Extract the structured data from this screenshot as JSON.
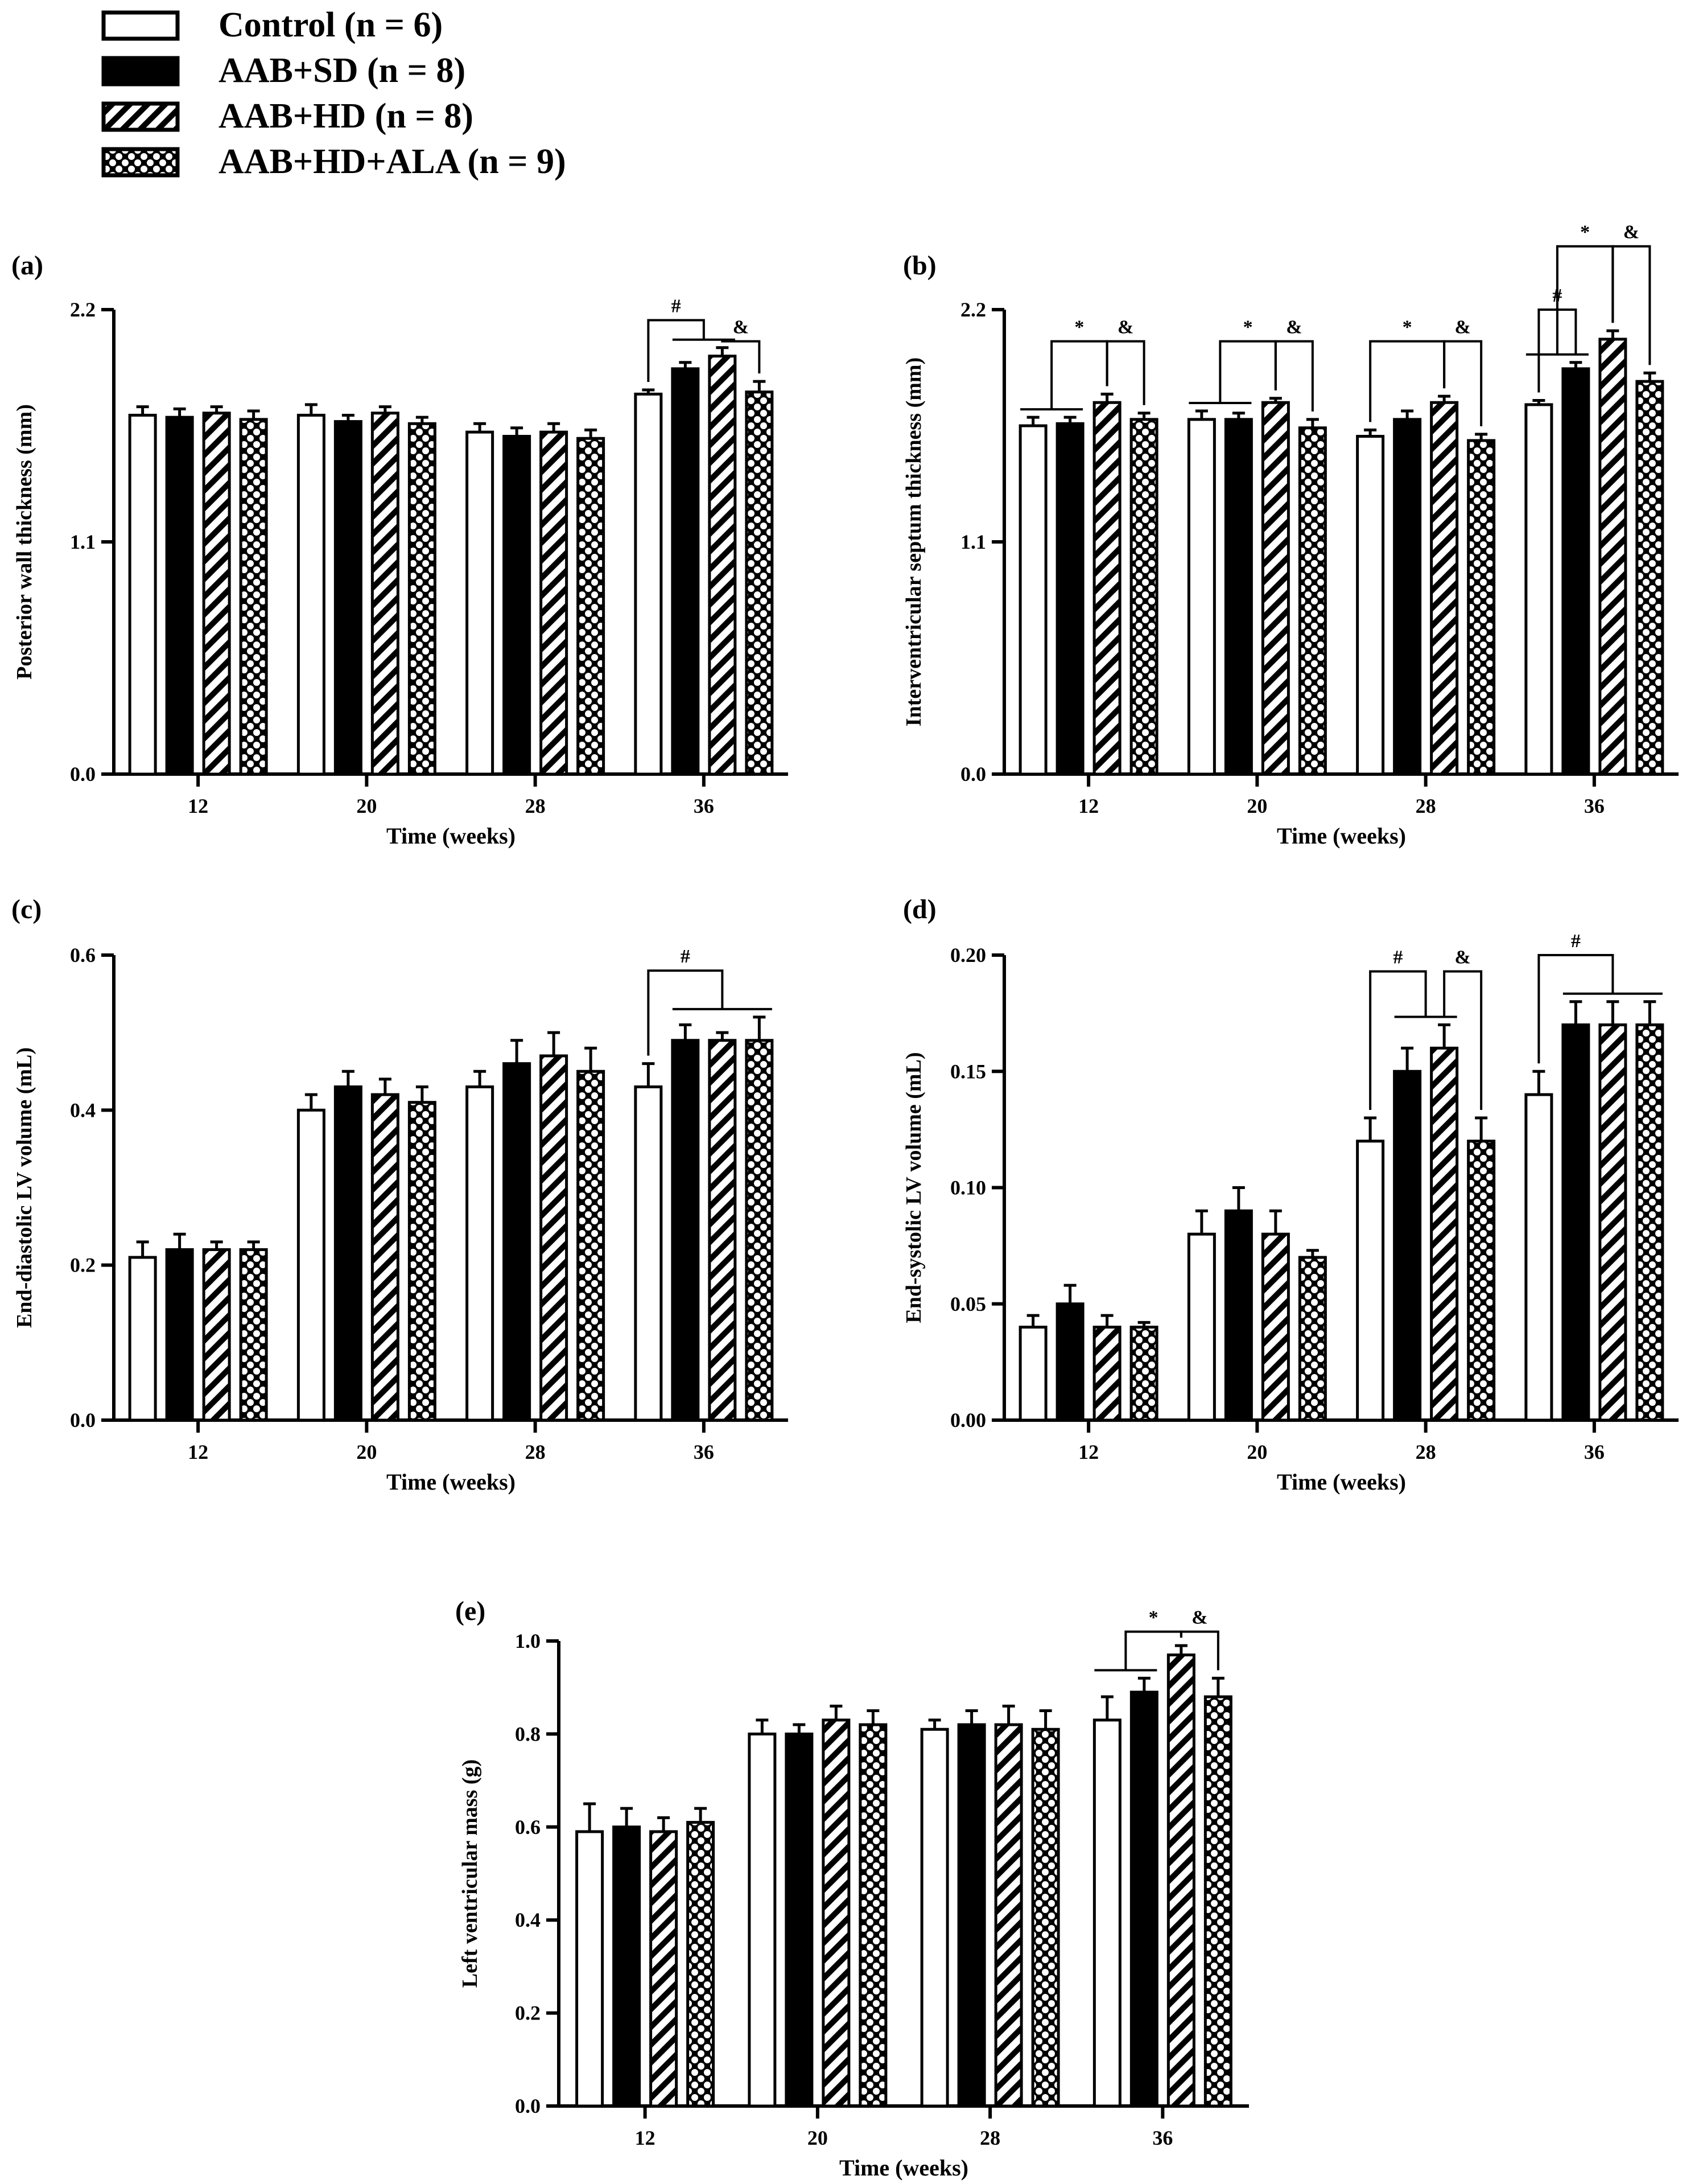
{
  "legend": [
    {
      "key": "control",
      "label": "Control (n = 6)",
      "pattern": "open"
    },
    {
      "key": "aab_sd",
      "label": "AAB+SD (n = 8)",
      "pattern": "solid"
    },
    {
      "key": "aab_hd",
      "label": "AAB+HD (n = 8)",
      "pattern": "hatch"
    },
    {
      "key": "aab_hd_ala",
      "label": "AAB+HD+ALA (n = 9)",
      "pattern": "cross"
    }
  ],
  "colors": {
    "ink": "#000000",
    "background": "#ffffff"
  },
  "chart_data": [
    {
      "panel": "(a)",
      "type": "bar",
      "xlabel": "Time (weeks)",
      "ylabel": "Posterior wall thickness (mm)",
      "ylim": [
        0,
        2.2
      ],
      "yticks": [
        "0.0",
        "1.1",
        "2.2"
      ],
      "categories": [
        "12",
        "20",
        "28",
        "36"
      ],
      "series": [
        {
          "name": "Control (n = 6)",
          "values": [
            1.7,
            1.7,
            1.62,
            1.8
          ],
          "errors": [
            0.04,
            0.05,
            0.04,
            0.02
          ]
        },
        {
          "name": "AAB+SD (n = 8)",
          "values": [
            1.69,
            1.67,
            1.6,
            1.92
          ],
          "errors": [
            0.04,
            0.03,
            0.04,
            0.03
          ]
        },
        {
          "name": "AAB+HD (n = 8)",
          "values": [
            1.71,
            1.71,
            1.62,
            1.98
          ],
          "errors": [
            0.03,
            0.03,
            0.04,
            0.04
          ]
        },
        {
          "name": "AAB+HD+ALA (n = 9)",
          "values": [
            1.68,
            1.66,
            1.59,
            1.81
          ],
          "errors": [
            0.04,
            0.03,
            0.04,
            0.05
          ]
        }
      ],
      "annotations": [
        {
          "label": "#",
          "type": "group-compare",
          "cat": 3,
          "from": 0,
          "to": [
            1,
            2
          ],
          "y": 2.15
        },
        {
          "label": "&",
          "type": "bar-compare",
          "cat": 3,
          "from": 2,
          "to": [
            3
          ],
          "y": 2.05
        }
      ]
    },
    {
      "panel": "(b)",
      "type": "bar",
      "xlabel": "Time (weeks)",
      "ylabel": "Interventricular septum thickness (mm)",
      "ylim": [
        0,
        2.2
      ],
      "yticks": [
        "0.0",
        "1.1",
        "2.2"
      ],
      "categories": [
        "12",
        "20",
        "28",
        "36"
      ],
      "series": [
        {
          "name": "Control (n = 6)",
          "values": [
            1.65,
            1.68,
            1.6,
            1.75
          ],
          "errors": [
            0.04,
            0.04,
            0.03,
            0.02
          ]
        },
        {
          "name": "AAB+SD (n = 8)",
          "values": [
            1.66,
            1.68,
            1.68,
            1.92
          ],
          "errors": [
            0.03,
            0.03,
            0.04,
            0.03
          ]
        },
        {
          "name": "AAB+HD (n = 8)",
          "values": [
            1.76,
            1.76,
            1.76,
            2.06
          ],
          "errors": [
            0.04,
            0.02,
            0.03,
            0.04
          ]
        },
        {
          "name": "AAB+HD+ALA (n = 9)",
          "values": [
            1.68,
            1.64,
            1.58,
            1.86
          ],
          "errors": [
            0.03,
            0.04,
            0.03,
            0.04
          ]
        }
      ],
      "annotations": [
        {
          "label": "*",
          "type": "group-compare",
          "cat": 0,
          "from": [
            0,
            1
          ],
          "to": [
            2
          ],
          "y": 2.05
        },
        {
          "label": "&",
          "type": "bar-compare",
          "cat": 0,
          "from": 2,
          "to": [
            3
          ],
          "y": 2.05
        },
        {
          "label": "*",
          "type": "group-compare",
          "cat": 1,
          "from": [
            0,
            1
          ],
          "to": [
            2
          ],
          "y": 2.05
        },
        {
          "label": "&",
          "type": "bar-compare",
          "cat": 1,
          "from": 2,
          "to": [
            3
          ],
          "y": 2.05
        },
        {
          "label": "*",
          "type": "bar-compare",
          "cat": 2,
          "from": 0,
          "to": [
            2
          ],
          "y": 2.05
        },
        {
          "label": "&",
          "type": "bar-compare",
          "cat": 2,
          "from": 2,
          "to": [
            3
          ],
          "y": 2.05
        },
        {
          "label": "#",
          "type": "bar-compare",
          "cat": 3,
          "from": 0,
          "to": [
            1
          ],
          "y": 2.2
        },
        {
          "label": "*",
          "type": "group-compare",
          "cat": 3,
          "from": [
            0,
            1
          ],
          "to": [
            2
          ],
          "y": 2.5
        },
        {
          "label": "&",
          "type": "bar-compare",
          "cat": 3,
          "from": 2,
          "to": [
            3
          ],
          "y": 2.5
        }
      ]
    },
    {
      "panel": "(c)",
      "type": "bar",
      "xlabel": "Time (weeks)",
      "ylabel": "End-diastolic LV volume (mL)",
      "ylim": [
        0,
        0.6
      ],
      "yticks": [
        "0.0",
        "0.2",
        "0.4",
        "0.6"
      ],
      "categories": [
        "12",
        "20",
        "28",
        "36"
      ],
      "series": [
        {
          "name": "Control (n = 6)",
          "values": [
            0.21,
            0.4,
            0.43,
            0.43
          ],
          "errors": [
            0.02,
            0.02,
            0.02,
            0.03
          ]
        },
        {
          "name": "AAB+SD (n = 8)",
          "values": [
            0.22,
            0.43,
            0.46,
            0.49
          ],
          "errors": [
            0.02,
            0.02,
            0.03,
            0.02
          ]
        },
        {
          "name": "AAB+HD (n = 8)",
          "values": [
            0.22,
            0.42,
            0.47,
            0.49
          ],
          "errors": [
            0.01,
            0.02,
            0.03,
            0.01
          ]
        },
        {
          "name": "AAB+HD+ALA (n = 9)",
          "values": [
            0.22,
            0.41,
            0.45,
            0.49
          ],
          "errors": [
            0.01,
            0.02,
            0.03,
            0.03
          ]
        }
      ],
      "annotations": [
        {
          "label": "#",
          "type": "group-compare",
          "cat": 3,
          "from": 0,
          "to": [
            1,
            2,
            3
          ],
          "y": 0.58
        }
      ]
    },
    {
      "panel": "(d)",
      "type": "bar",
      "xlabel": "Time (weeks)",
      "ylabel": "End-systolic LV volume (mL)",
      "ylim": [
        0,
        0.2
      ],
      "yticks": [
        "0.00",
        "0.05",
        "0.10",
        "0.15",
        "0.20"
      ],
      "categories": [
        "12",
        "20",
        "28",
        "36"
      ],
      "series": [
        {
          "name": "Control (n = 6)",
          "values": [
            0.04,
            0.08,
            0.12,
            0.14
          ],
          "errors": [
            0.005,
            0.01,
            0.01,
            0.01
          ]
        },
        {
          "name": "AAB+SD (n = 8)",
          "values": [
            0.05,
            0.09,
            0.15,
            0.17
          ],
          "errors": [
            0.008,
            0.01,
            0.01,
            0.01
          ]
        },
        {
          "name": "AAB+HD (n = 8)",
          "values": [
            0.04,
            0.08,
            0.16,
            0.17
          ],
          "errors": [
            0.005,
            0.01,
            0.01,
            0.01
          ]
        },
        {
          "name": "AAB+HD+ALA (n = 9)",
          "values": [
            0.04,
            0.07,
            0.12,
            0.17
          ],
          "errors": [
            0.002,
            0.003,
            0.01,
            0.01
          ]
        }
      ],
      "annotations": [
        {
          "label": "#",
          "type": "group-compare",
          "cat": 2,
          "from": 0,
          "to": [
            1,
            2
          ],
          "y": 0.193
        },
        {
          "label": "&",
          "type": "bar-compare",
          "cat": 2,
          "from": 2,
          "to": [
            3
          ],
          "y": 0.193
        },
        {
          "label": "#",
          "type": "group-compare",
          "cat": 3,
          "from": 0,
          "to": [
            1,
            2,
            3
          ],
          "y": 0.2
        }
      ]
    },
    {
      "panel": "(e)",
      "type": "bar",
      "xlabel": "Time (weeks)",
      "ylabel": "Left ventricular mass (g)",
      "ylim": [
        0,
        1.0
      ],
      "yticks": [
        "0.0",
        "0.2",
        "0.4",
        "0.6",
        "0.8",
        "1.0"
      ],
      "categories": [
        "12",
        "20",
        "28",
        "36"
      ],
      "series": [
        {
          "name": "Control (n = 6)",
          "values": [
            0.59,
            0.8,
            0.81,
            0.83
          ],
          "errors": [
            0.06,
            0.03,
            0.02,
            0.05
          ]
        },
        {
          "name": "AAB+SD (n = 8)",
          "values": [
            0.6,
            0.8,
            0.82,
            0.89
          ],
          "errors": [
            0.04,
            0.02,
            0.03,
            0.03
          ]
        },
        {
          "name": "AAB+HD (n = 8)",
          "values": [
            0.59,
            0.83,
            0.82,
            0.97
          ],
          "errors": [
            0.03,
            0.03,
            0.04,
            0.02
          ]
        },
        {
          "name": "AAB+HD+ALA (n = 9)",
          "values": [
            0.61,
            0.82,
            0.81,
            0.88
          ],
          "errors": [
            0.03,
            0.03,
            0.04,
            0.04
          ]
        }
      ],
      "annotations": [
        {
          "label": "*",
          "type": "group-compare",
          "cat": 3,
          "from": [
            0,
            1
          ],
          "to": [
            2
          ],
          "y": 1.02
        },
        {
          "label": "&",
          "type": "bar-compare",
          "cat": 3,
          "from": 2,
          "to": [
            3
          ],
          "y": 1.02
        }
      ]
    }
  ]
}
